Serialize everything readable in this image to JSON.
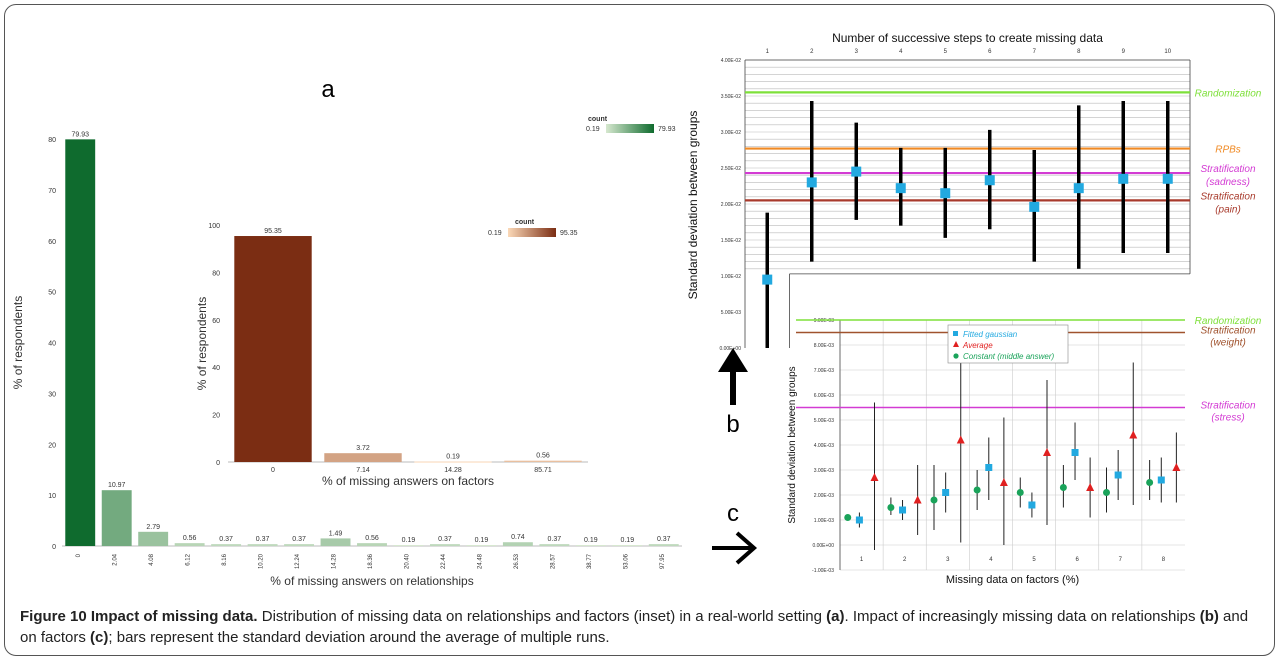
{
  "figure": {
    "caption_title": "Figure 10 Impact of missing data.",
    "caption_text_1": " Distribution of missing data on relationships and factors (inset) in a real-world setting ",
    "caption_ref_a": "(a)",
    "caption_text_2": ". Impact of increasingly missing data on relationships ",
    "caption_ref_b": "(b)",
    "caption_text_3": " and on factors ",
    "caption_ref_c": "(c)",
    "caption_text_4": "; bars represent the standard deviation around the average of multiple runs.",
    "panel_a_label": "a",
    "panel_b_label": "b",
    "panel_c_label": "c"
  },
  "chart_data": [
    {
      "id": "a",
      "type": "bar",
      "xlabel": "% of missing answers on relationships",
      "ylabel": "% of respondents",
      "ylim": [
        0,
        80
      ],
      "yticks": [
        "0",
        "10",
        "20",
        "30",
        "40",
        "50",
        "60",
        "70",
        "80"
      ],
      "categories": [
        "0",
        "2.04",
        "4.08",
        "6.12",
        "8.16",
        "10.20",
        "12.24",
        "14.28",
        "18.36",
        "20.40",
        "22.44",
        "24.48",
        "26.53",
        "28.57",
        "38.77",
        "53.06",
        "97.95"
      ],
      "values": [
        79.93,
        10.97,
        2.79,
        0.56,
        0.37,
        0.37,
        0.37,
        1.49,
        0.56,
        0.19,
        0.37,
        0.19,
        0.74,
        0.37,
        0.19,
        0.19,
        0.37
      ],
      "value_labels": [
        "79.93",
        "10.97",
        "2.79",
        "0.56",
        "0.37",
        "0.37",
        "0.37",
        "1.49",
        "0.56",
        "0.19",
        "0.37",
        "0.19",
        "0.74",
        "0.37",
        "0.19",
        "0.19",
        "0.37"
      ],
      "legend": {
        "title": "count",
        "min": "0.19",
        "max": "79.93",
        "color_low": "#d6e8cf",
        "color_high": "#0f6b2e"
      }
    },
    {
      "id": "a-inset",
      "type": "bar",
      "xlabel": "% of missing answers on factors",
      "ylabel": "% of respondents",
      "ylim": [
        0,
        100
      ],
      "yticks": [
        "0",
        "20",
        "40",
        "60",
        "80",
        "100"
      ],
      "categories": [
        "0",
        "7.14",
        "14.28",
        "85.71"
      ],
      "values": [
        95.35,
        3.72,
        0.19,
        0.56
      ],
      "value_labels": [
        "95.35",
        "3.72",
        "0.19",
        "0.56"
      ],
      "legend": {
        "title": "count",
        "min": "0.19",
        "max": "95.35",
        "color_low": "#fbd9b8",
        "color_high": "#7b2d13"
      }
    },
    {
      "id": "b",
      "type": "scatter",
      "title": "Number of successive steps to create missing data",
      "ylabel": "Standard deviation between groups",
      "ylim": [
        0,
        0.04
      ],
      "yticks": [
        "0.00E+00",
        "5.00E-03",
        "1.00E-02",
        "1.50E-02",
        "2.00E-02",
        "2.50E-02",
        "3.00E-02",
        "3.50E-02",
        "4.00E-02"
      ],
      "x": [
        1,
        2,
        3,
        4,
        5,
        6,
        7,
        8,
        9,
        10
      ],
      "xticks": [
        "1",
        "2",
        "3",
        "4",
        "5",
        "6",
        "7",
        "8",
        "9",
        "10"
      ],
      "y": [
        0.0095,
        0.023,
        0.0245,
        0.0222,
        0.0215,
        0.0233,
        0.0196,
        0.0222,
        0.0235,
        0.0235
      ],
      "ylow": [
        0.0,
        0.012,
        0.0178,
        0.017,
        0.0153,
        0.0165,
        0.012,
        0.011,
        0.0132,
        0.0132
      ],
      "yhigh": [
        0.0188,
        0.0343,
        0.0313,
        0.0278,
        0.0278,
        0.0303,
        0.0275,
        0.0337,
        0.0343,
        0.0343
      ],
      "point_color": "#22a9e0",
      "reference_lines": [
        {
          "label": "Randomization",
          "value": 0.0355,
          "color": "#7ee03a"
        },
        {
          "label": "RPBs",
          "value": 0.0277,
          "color": "#f08a24"
        },
        {
          "label": "Stratification",
          "label2": "(sadness)",
          "value": 0.0243,
          "color": "#d33bd3"
        },
        {
          "label": "Stratification",
          "label2": "(pain)",
          "value": 0.0205,
          "color": "#a83a2c"
        }
      ]
    },
    {
      "id": "c",
      "type": "scatter",
      "xlabel": "Missing data on factors (%)",
      "ylabel": "Standard deviation between groups",
      "ylim": [
        -0.001,
        0.009
      ],
      "yticks": [
        "-1.00E-03",
        "0.00E+00",
        "1.00E-03",
        "2.00E-03",
        "3.00E-03",
        "4.00E-03",
        "5.00E-03",
        "6.00E-03",
        "7.00E-03",
        "8.00E-03",
        "9.00E-03"
      ],
      "categories": [
        "1",
        "2",
        "3",
        "4",
        "5",
        "6",
        "7",
        "8"
      ],
      "series": [
        {
          "name": "Fitted gaussian",
          "color": "#22a9e0",
          "marker": "square",
          "y": [
            0.001,
            0.0014,
            0.0021,
            0.0031,
            0.0016,
            0.0037,
            0.0028,
            0.0026
          ],
          "ylow": [
            0.0007,
            0.001,
            0.0013,
            0.0018,
            0.0011,
            0.0026,
            0.0018,
            0.0017
          ],
          "yhigh": [
            0.0013,
            0.0018,
            0.0029,
            0.0043,
            0.0021,
            0.0049,
            0.0038,
            0.0035
          ]
        },
        {
          "name": "Average",
          "color": "#e02020",
          "marker": "triangle",
          "y": [
            0.0027,
            0.0018,
            0.0042,
            0.0025,
            0.0037,
            0.0023,
            0.0044,
            0.0031
          ],
          "ylow": [
            -0.0002,
            0.0004,
            0.0001,
            0.0,
            0.0008,
            0.0011,
            0.0016,
            0.0017
          ],
          "yhigh": [
            0.0057,
            0.0032,
            0.0085,
            0.0051,
            0.0066,
            0.0035,
            0.0073,
            0.0045
          ]
        },
        {
          "name": "Constant (middle answer)",
          "color": "#1aa35a",
          "marker": "circle",
          "y": [
            0.0011,
            0.0015,
            0.0018,
            0.0022,
            0.0021,
            0.0023,
            0.0021,
            0.0025
          ],
          "ylow": [
            0.001,
            0.0012,
            0.0006,
            0.0014,
            0.0015,
            0.0015,
            0.0013,
            0.0018
          ],
          "yhigh": [
            0.0012,
            0.0019,
            0.0032,
            0.003,
            0.0027,
            0.0032,
            0.0031,
            0.0034
          ]
        }
      ],
      "reference_lines": [
        {
          "label": "Randomization",
          "value": 0.009,
          "color": "#7ee03a"
        },
        {
          "label": "Stratification",
          "label2": "(weight)",
          "value": 0.0085,
          "color": "#a0522d"
        },
        {
          "label": "Stratification",
          "label2": "(stress)",
          "value": 0.0055,
          "color": "#d33bd3"
        }
      ]
    }
  ]
}
